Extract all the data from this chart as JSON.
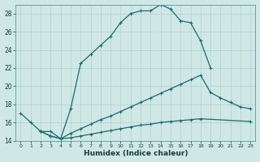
{
  "xlabel": "Humidex (Indice chaleur)",
  "bg_color": "#cfe8e5",
  "line_color": "#1a6b6b",
  "grid_color": "#b0d0cc",
  "xlim": [
    -0.5,
    23.5
  ],
  "ylim": [
    14,
    29
  ],
  "xticks": [
    0,
    1,
    2,
    3,
    4,
    5,
    6,
    7,
    8,
    9,
    10,
    11,
    12,
    13,
    14,
    15,
    16,
    17,
    18,
    19,
    20,
    21,
    22,
    23
  ],
  "yticks": [
    14,
    16,
    18,
    20,
    22,
    24,
    26,
    28
  ],
  "line1_x": [
    0,
    1,
    2,
    3,
    4,
    5,
    6,
    7,
    8,
    9,
    10,
    11,
    12,
    13,
    14,
    15,
    16,
    17,
    18,
    19
  ],
  "line1_y": [
    17.0,
    16.0,
    15.0,
    15.0,
    14.2,
    17.5,
    22.5,
    23.5,
    24.5,
    25.5,
    27.0,
    28.0,
    28.3,
    28.3,
    29.0,
    28.5,
    27.2,
    27.0,
    25.0,
    22.0
  ],
  "line2_x": [
    2,
    3,
    4,
    5,
    6,
    7,
    8,
    9,
    10,
    11,
    12,
    13,
    14,
    15,
    16,
    17,
    18,
    19,
    20,
    21,
    22,
    23
  ],
  "line2_y": [
    15.0,
    14.5,
    14.2,
    14.8,
    15.3,
    15.8,
    16.3,
    16.7,
    17.2,
    17.7,
    18.2,
    18.7,
    19.2,
    19.7,
    20.2,
    20.7,
    21.2,
    19.3,
    18.7,
    18.2,
    17.7,
    17.5
  ],
  "line3_x": [
    2,
    3,
    4,
    5,
    6,
    7,
    8,
    9,
    10,
    11,
    12,
    13,
    14,
    15,
    16,
    17,
    18,
    23
  ],
  "line3_y": [
    15.0,
    14.5,
    14.2,
    14.3,
    14.5,
    14.7,
    14.9,
    15.1,
    15.3,
    15.5,
    15.7,
    15.8,
    16.0,
    16.1,
    16.2,
    16.3,
    16.4,
    16.1
  ]
}
